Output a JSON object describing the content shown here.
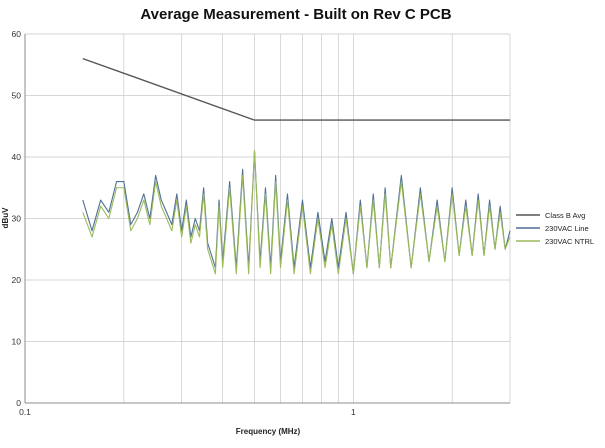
{
  "chart_data": {
    "type": "line",
    "title": "Average Measurement - Built on Rev C PCB",
    "xlabel": "Frequency (MHz)",
    "ylabel": "dBuV",
    "x_scale": "log",
    "xlim": [
      0.1,
      3.0
    ],
    "ylim": [
      0,
      60
    ],
    "x_ticks": [
      0.1,
      1
    ],
    "x_tick_labels": [
      "0.1",
      "1"
    ],
    "y_ticks": [
      0,
      10,
      20,
      30,
      40,
      50,
      60
    ],
    "y_tick_labels": [
      "0",
      "10",
      "20",
      "30",
      "40",
      "50",
      "60"
    ],
    "grid": true,
    "legend_position": "right",
    "series": [
      {
        "name": "Class B Avg",
        "color": "#555555",
        "x": [
          0.15,
          0.5,
          3.0
        ],
        "y": [
          56,
          46,
          46
        ]
      },
      {
        "name": "230VAC Line",
        "color": "#4f6f96",
        "x": [
          0.15,
          0.16,
          0.17,
          0.18,
          0.19,
          0.2,
          0.21,
          0.22,
          0.23,
          0.24,
          0.25,
          0.26,
          0.27,
          0.28,
          0.29,
          0.3,
          0.31,
          0.32,
          0.33,
          0.34,
          0.35,
          0.36,
          0.37,
          0.38,
          0.39,
          0.4,
          0.42,
          0.44,
          0.46,
          0.48,
          0.5,
          0.52,
          0.54,
          0.56,
          0.58,
          0.6,
          0.63,
          0.66,
          0.7,
          0.74,
          0.78,
          0.82,
          0.86,
          0.9,
          0.95,
          1.0,
          1.05,
          1.1,
          1.15,
          1.2,
          1.25,
          1.3,
          1.4,
          1.5,
          1.6,
          1.7,
          1.8,
          1.9,
          2.0,
          2.1,
          2.2,
          2.3,
          2.4,
          2.5,
          2.6,
          2.7,
          2.8,
          2.9,
          3.0
        ],
        "y": [
          33,
          28,
          33,
          31,
          36,
          36,
          29,
          31,
          34,
          30,
          37,
          33,
          31,
          29,
          34,
          28,
          33,
          27,
          30,
          28,
          35,
          26,
          24,
          22,
          33,
          23,
          36,
          22,
          38,
          22,
          41,
          23,
          35,
          22,
          37,
          23,
          34,
          22,
          33,
          22,
          31,
          23,
          30,
          22,
          31,
          21,
          33,
          22,
          34,
          22,
          35,
          22,
          37,
          22,
          35,
          23,
          33,
          23,
          35,
          24,
          33,
          24,
          34,
          24,
          33,
          25,
          32,
          25,
          28
        ]
      },
      {
        "name": "230VAC NTRL",
        "color": "#9bbb59",
        "x": [
          0.15,
          0.16,
          0.17,
          0.18,
          0.19,
          0.2,
          0.21,
          0.22,
          0.23,
          0.24,
          0.25,
          0.26,
          0.27,
          0.28,
          0.29,
          0.3,
          0.31,
          0.32,
          0.33,
          0.34,
          0.35,
          0.36,
          0.37,
          0.38,
          0.39,
          0.4,
          0.42,
          0.44,
          0.46,
          0.48,
          0.5,
          0.52,
          0.54,
          0.56,
          0.58,
          0.6,
          0.63,
          0.66,
          0.7,
          0.74,
          0.78,
          0.82,
          0.86,
          0.9,
          0.95,
          1.0,
          1.05,
          1.1,
          1.15,
          1.2,
          1.25,
          1.3,
          1.4,
          1.5,
          1.6,
          1.7,
          1.8,
          1.9,
          2.0,
          2.1,
          2.2,
          2.3,
          2.4,
          2.5,
          2.6,
          2.7,
          2.8,
          2.9,
          3.0
        ],
        "y": [
          31,
          27,
          32,
          30,
          35,
          35,
          28,
          30,
          33,
          29,
          36,
          32,
          30,
          28,
          33,
          27,
          32,
          26,
          29,
          27,
          34,
          25,
          23,
          21,
          32,
          22,
          35,
          21,
          37,
          21,
          41,
          22,
          34,
          21,
          36,
          22,
          33,
          21,
          32,
          21,
          30,
          22,
          29,
          21,
          30,
          21,
          32,
          22,
          33,
          22,
          34,
          22,
          36,
          22,
          34,
          23,
          32,
          23,
          34,
          24,
          32,
          24,
          33,
          24,
          32,
          25,
          31,
          25,
          27
        ]
      }
    ]
  }
}
